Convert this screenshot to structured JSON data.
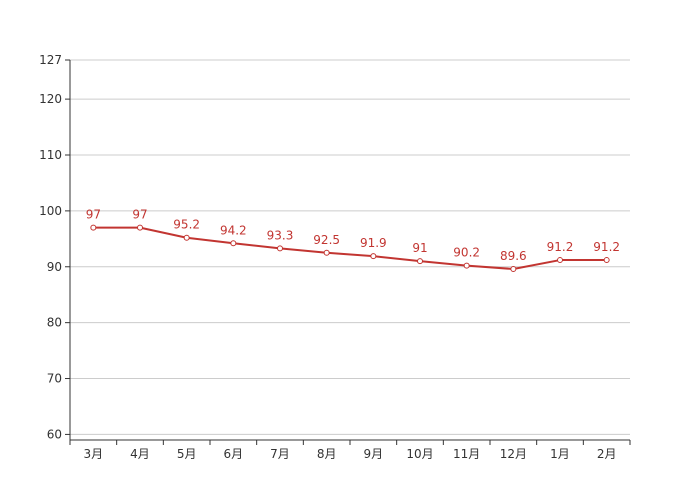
{
  "chart_data": {
    "type": "line",
    "categories": [
      "3月",
      "4月",
      "5月",
      "6月",
      "7月",
      "8月",
      "9月",
      "10月",
      "11月",
      "12月",
      "1月",
      "2月"
    ],
    "series": [
      {
        "values": [
          97,
          97,
          95.2,
          94.2,
          93.3,
          92.5,
          91.9,
          91,
          90.2,
          89.6,
          91.2,
          91.2
        ]
      }
    ],
    "data_labels": [
      "97",
      "97",
      "95.2",
      "94.2",
      "93.3",
      "92.5",
      "91.9",
      "91",
      "90.2",
      "89.6",
      "91.2",
      "91.2"
    ],
    "y_ticks": [
      60,
      70,
      80,
      90,
      100,
      110,
      120,
      127
    ],
    "ylim": [
      59,
      127
    ],
    "grid": true,
    "colors": {
      "line": "#c23531",
      "grid": "#cccccc",
      "axis": "#333333",
      "marker_fill": "#ffffff"
    }
  }
}
